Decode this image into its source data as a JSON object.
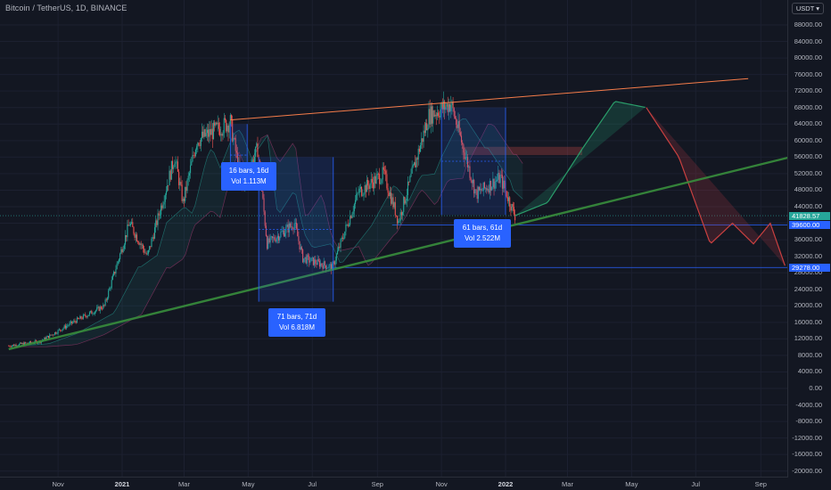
{
  "header": {
    "title": "Bitcoin / TetherUS, 1D, BINANCE"
  },
  "price_scale": {
    "currency_label": "USDT",
    "currency_icon": "chevron-down-icon",
    "ticks": [
      {
        "label": "88000.00",
        "value": 88000
      },
      {
        "label": "84000.00",
        "value": 84000
      },
      {
        "label": "80000.00",
        "value": 80000
      },
      {
        "label": "76000.00",
        "value": 76000
      },
      {
        "label": "72000.00",
        "value": 72000
      },
      {
        "label": "68000.00",
        "value": 68000
      },
      {
        "label": "64000.00",
        "value": 64000
      },
      {
        "label": "60000.00",
        "value": 60000
      },
      {
        "label": "56000.00",
        "value": 56000
      },
      {
        "label": "52000.00",
        "value": 52000
      },
      {
        "label": "48000.00",
        "value": 48000
      },
      {
        "label": "44000.00",
        "value": 44000
      },
      {
        "label": "40000.00",
        "value": 40000
      },
      {
        "label": "36000.00",
        "value": 36000
      },
      {
        "label": "32000.00",
        "value": 32000
      },
      {
        "label": "28000.00",
        "value": 28000
      },
      {
        "label": "24000.00",
        "value": 24000
      },
      {
        "label": "20000.00",
        "value": 20000
      },
      {
        "label": "16000.00",
        "value": 16000
      },
      {
        "label": "12000.00",
        "value": 12000
      },
      {
        "label": "8000.00",
        "value": 8000
      },
      {
        "label": "4000.00",
        "value": 4000
      },
      {
        "label": "0.00",
        "value": 0
      },
      {
        "label": "-4000.00",
        "value": -4000
      },
      {
        "label": "-8000.00",
        "value": -8000
      },
      {
        "label": "-12000.00",
        "value": -12000
      },
      {
        "label": "-16000.00",
        "value": -16000
      },
      {
        "label": "-20000.00",
        "value": -20000
      }
    ],
    "badges": [
      {
        "label": "41828.57",
        "value": 41828.57,
        "color": "#26a69a"
      },
      {
        "label": "39600.00",
        "value": 39600,
        "color": "#2962ff"
      },
      {
        "label": "29278.00",
        "value": 29278,
        "color": "#2962ff"
      }
    ]
  },
  "time_scale": {
    "ticks": [
      {
        "label": "Nov",
        "date": "2020-11-01",
        "bold": false
      },
      {
        "label": "2021",
        "date": "2021-01-01",
        "bold": true
      },
      {
        "label": "Mar",
        "date": "2021-03-01",
        "bold": false
      },
      {
        "label": "May",
        "date": "2021-05-01",
        "bold": false
      },
      {
        "label": "Jul",
        "date": "2021-07-01",
        "bold": false
      },
      {
        "label": "Sep",
        "date": "2021-09-01",
        "bold": false
      },
      {
        "label": "Nov",
        "date": "2021-11-01",
        "bold": false
      },
      {
        "label": "2022",
        "date": "2022-01-01",
        "bold": true
      },
      {
        "label": "Mar",
        "date": "2022-03-01",
        "bold": false
      },
      {
        "label": "May",
        "date": "2022-05-01",
        "bold": false
      },
      {
        "label": "Jul",
        "date": "2022-07-01",
        "bold": false
      },
      {
        "label": "Sep",
        "date": "2022-09-01",
        "bold": false
      }
    ]
  },
  "measurements": [
    {
      "line1": "16 bars, 16d",
      "line2": "Vol 1.113M"
    },
    {
      "line1": "71 bars, 71d",
      "line2": "Vol 6.818M"
    },
    {
      "line1": "61 bars, 61d",
      "line2": "Vol 2.522M"
    }
  ],
  "colors": {
    "background": "#131722",
    "up": "#26a69a",
    "down": "#ef5350",
    "trendline_upper": "#f57c4a",
    "trendline_lower": "#388e3c",
    "measure": "#2962ff",
    "projection_up": "#2a9d6a",
    "projection_down": "#c94040"
  },
  "chart_data": {
    "type": "candlestick",
    "symbol": "Bitcoin / TetherUS",
    "interval": "1D",
    "exchange": "BINANCE",
    "last_price": 41828.57,
    "ylim": [
      -20000,
      92000
    ],
    "horizontal_levels": [
      39600,
      29278
    ],
    "price_path": [
      {
        "date": "2020-09-15",
        "price": 10300
      },
      {
        "date": "2020-10-15",
        "price": 11400
      },
      {
        "date": "2020-11-15",
        "price": 16000
      },
      {
        "date": "2020-12-15",
        "price": 20000
      },
      {
        "date": "2021-01-08",
        "price": 40000
      },
      {
        "date": "2021-01-25",
        "price": 32000
      },
      {
        "date": "2021-02-20",
        "price": 56000
      },
      {
        "date": "2021-02-28",
        "price": 45000
      },
      {
        "date": "2021-03-13",
        "price": 60000
      },
      {
        "date": "2021-04-14",
        "price": 64500
      },
      {
        "date": "2021-04-25",
        "price": 49000
      },
      {
        "date": "2021-05-10",
        "price": 58000
      },
      {
        "date": "2021-05-19",
        "price": 35000
      },
      {
        "date": "2021-06-14",
        "price": 40000
      },
      {
        "date": "2021-06-22",
        "price": 31500
      },
      {
        "date": "2021-07-20",
        "price": 29300
      },
      {
        "date": "2021-08-14",
        "price": 47500
      },
      {
        "date": "2021-09-07",
        "price": 52000
      },
      {
        "date": "2021-09-21",
        "price": 40500
      },
      {
        "date": "2021-10-20",
        "price": 66000
      },
      {
        "date": "2021-11-10",
        "price": 69000
      },
      {
        "date": "2021-12-04",
        "price": 47000
      },
      {
        "date": "2021-12-27",
        "price": 51000
      },
      {
        "date": "2022-01-10",
        "price": 41828.57
      }
    ],
    "projection_path": [
      {
        "date": "2022-01-10",
        "price": 41828.57
      },
      {
        "date": "2022-02-10",
        "price": 45000
      },
      {
        "date": "2022-03-15",
        "price": 58000
      },
      {
        "date": "2022-04-15",
        "price": 69500
      },
      {
        "date": "2022-05-15",
        "price": 68000
      },
      {
        "date": "2022-06-15",
        "price": 56000
      },
      {
        "date": "2022-07-15",
        "price": 35000
      },
      {
        "date": "2022-08-05",
        "price": 40000
      },
      {
        "date": "2022-08-25",
        "price": 35000
      },
      {
        "date": "2022-09-10",
        "price": 40000
      },
      {
        "date": "2022-09-25",
        "price": 29000
      }
    ],
    "trendlines": [
      {
        "name": "",
        "from": {
          "date": "2021-04-14",
          "price": 65000
        },
        "to": {
          "date": "2022-08-20",
          "price": 75000
        }
      },
      {
        "name": "",
        "from": {
          "date": "2020-09-15",
          "price": 9500
        },
        "to": {
          "date": "2022-10-15",
          "price": 57000
        }
      }
    ]
  }
}
